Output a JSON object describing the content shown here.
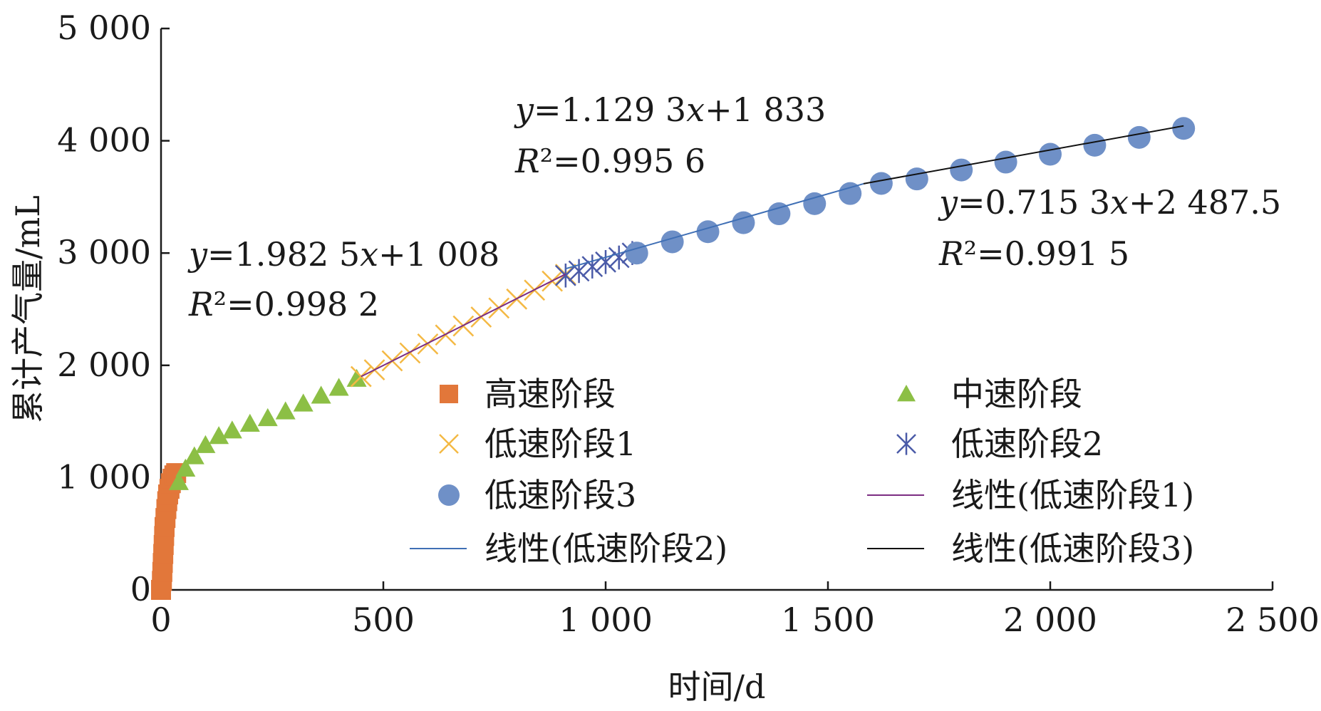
{
  "chart_data": {
    "type": "scatter",
    "xlabel": "时间/d",
    "ylabel": "累计产气量/mL",
    "xlim": [
      0,
      2500
    ],
    "ylim": [
      0,
      5000
    ],
    "x_ticks": [
      0,
      500,
      1000,
      1500,
      2000,
      2500
    ],
    "y_ticks": [
      0,
      1000,
      2000,
      3000,
      4000,
      5000
    ],
    "x_tick_labels": [
      "0",
      "500",
      "1 000",
      "1 500",
      "2 000",
      "2 500"
    ],
    "y_tick_labels": [
      "0",
      "1 000",
      "2 000",
      "3 000",
      "4 000",
      "5 000"
    ],
    "grid": false,
    "legend_position": "bottom-right",
    "series": [
      {
        "name": "高速阶段",
        "marker": "square",
        "color": "#E2773A",
        "points": [
          [
            0,
            0
          ],
          [
            2,
            80
          ],
          [
            3,
            160
          ],
          [
            4,
            240
          ],
          [
            5,
            320
          ],
          [
            6,
            400
          ],
          [
            7,
            480
          ],
          [
            8,
            560
          ],
          [
            10,
            640
          ],
          [
            12,
            720
          ],
          [
            14,
            790
          ],
          [
            16,
            850
          ],
          [
            19,
            900
          ],
          [
            22,
            950
          ],
          [
            26,
            990
          ],
          [
            30,
            1020
          ],
          [
            34,
            1040
          ]
        ]
      },
      {
        "name": "中速阶段",
        "marker": "triangle",
        "color": "#8CBF45",
        "points": [
          [
            40,
            960
          ],
          [
            55,
            1080
          ],
          [
            75,
            1190
          ],
          [
            100,
            1290
          ],
          [
            130,
            1370
          ],
          [
            160,
            1420
          ],
          [
            200,
            1480
          ],
          [
            240,
            1530
          ],
          [
            280,
            1590
          ],
          [
            320,
            1660
          ],
          [
            360,
            1730
          ],
          [
            400,
            1800
          ],
          [
            440,
            1880
          ]
        ]
      },
      {
        "name": "低速阶段1",
        "marker": "x",
        "color": "#F4B944",
        "points": [
          [
            450,
            1900
          ],
          [
            480,
            1960
          ],
          [
            520,
            2040
          ],
          [
            560,
            2110
          ],
          [
            600,
            2190
          ],
          [
            640,
            2270
          ],
          [
            680,
            2350
          ],
          [
            720,
            2430
          ],
          [
            760,
            2510
          ],
          [
            800,
            2590
          ],
          [
            840,
            2670
          ],
          [
            880,
            2750
          ],
          [
            910,
            2810
          ]
        ]
      },
      {
        "name": "低速阶段2",
        "marker": "asterisk",
        "color": "#4B5BA8",
        "points": [
          [
            910,
            2800
          ],
          [
            940,
            2840
          ],
          [
            970,
            2880
          ],
          [
            1000,
            2920
          ],
          [
            1030,
            2960
          ],
          [
            1060,
            3000
          ]
        ]
      },
      {
        "name": "低速阶段3",
        "marker": "circle",
        "color": "#6F90C7",
        "points": [
          [
            1070,
            3000
          ],
          [
            1150,
            3100
          ],
          [
            1230,
            3190
          ],
          [
            1310,
            3270
          ],
          [
            1390,
            3350
          ],
          [
            1470,
            3440
          ],
          [
            1550,
            3530
          ],
          [
            1620,
            3620
          ],
          [
            1700,
            3660
          ],
          [
            1800,
            3740
          ],
          [
            1900,
            3810
          ],
          [
            2000,
            3880
          ],
          [
            2100,
            3960
          ],
          [
            2200,
            4030
          ],
          [
            2300,
            4110
          ]
        ]
      }
    ],
    "trendlines": [
      {
        "name": "线性(低速阶段1)",
        "color": "#7B2D82",
        "x_range": [
          450,
          910
        ],
        "slope": 1.9825,
        "intercept": 1008,
        "equation": "y=1.982 5x+1 008",
        "r2": "R²=0.998 2"
      },
      {
        "name": "线性(低速阶段2)",
        "color": "#3F6FB5",
        "x_range": [
          910,
          1580
        ],
        "slope": 1.1293,
        "intercept": 1833,
        "equation": "y=1.129 3x+1 833",
        "r2": "R²=0.995 6"
      },
      {
        "name": "线性(低速阶段3)",
        "color": "#111111",
        "x_range": [
          1580,
          2300
        ],
        "slope": 0.7153,
        "intercept": 2487.5,
        "equation": "y=0.715 3x+2 487.5",
        "r2": "R²=0.991 5"
      }
    ]
  }
}
